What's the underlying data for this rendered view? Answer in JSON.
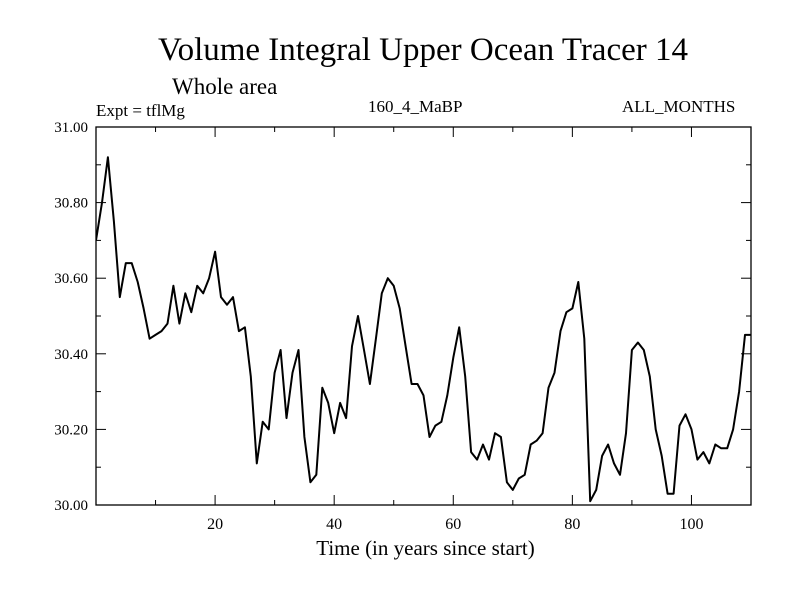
{
  "chart_data": {
    "type": "line",
    "title": "Volume Integral Upper Ocean Tracer 14",
    "subtitle": "Whole area",
    "annotations": {
      "left": "Expt = tflMg",
      "center": "160_4_MaBP",
      "right": "ALL_MONTHS"
    },
    "xlabel": "Time (in years since start)",
    "ylabel": "",
    "xlim": [
      0,
      110
    ],
    "ylim": [
      30.0,
      31.0
    ],
    "x_ticks": [
      20,
      40,
      60,
      80,
      100
    ],
    "x_tick_labels": [
      "20",
      "40",
      "60",
      "80",
      "100"
    ],
    "y_ticks": [
      30.0,
      30.2,
      30.4,
      30.6,
      30.8,
      31.0
    ],
    "y_tick_labels": [
      "30.00",
      "30.20",
      "30.40",
      "30.60",
      "30.80",
      "31.00"
    ],
    "grid": false,
    "series": [
      {
        "name": "Tracer 14",
        "x": [
          0,
          1,
          2,
          3,
          4,
          5,
          6,
          7,
          8,
          9,
          10,
          11,
          12,
          13,
          14,
          15,
          16,
          17,
          18,
          19,
          20,
          21,
          22,
          23,
          24,
          25,
          26,
          27,
          28,
          29,
          30,
          31,
          32,
          33,
          34,
          35,
          36,
          37,
          38,
          39,
          40,
          41,
          42,
          43,
          44,
          45,
          46,
          47,
          48,
          49,
          50,
          51,
          52,
          53,
          54,
          55,
          56,
          57,
          58,
          59,
          60,
          61,
          62,
          63,
          64,
          65,
          66,
          67,
          68,
          69,
          70,
          71,
          72,
          73,
          74,
          75,
          76,
          77,
          78,
          79,
          80,
          81,
          82,
          83,
          84,
          85,
          86,
          87,
          88,
          89,
          90,
          91,
          92,
          93,
          94,
          95,
          96,
          97,
          98,
          99,
          100,
          101,
          102,
          103,
          104,
          105,
          106,
          107,
          108,
          109,
          110
        ],
        "values": [
          30.7,
          30.8,
          30.92,
          30.75,
          30.55,
          30.64,
          30.64,
          30.59,
          30.52,
          30.44,
          30.45,
          30.46,
          30.48,
          30.58,
          30.48,
          30.56,
          30.51,
          30.58,
          30.56,
          30.6,
          30.67,
          30.55,
          30.53,
          30.55,
          30.46,
          30.47,
          30.34,
          30.11,
          30.22,
          30.2,
          30.35,
          30.41,
          30.23,
          30.35,
          30.41,
          30.18,
          30.06,
          30.08,
          30.31,
          30.27,
          30.19,
          30.27,
          30.23,
          30.42,
          30.5,
          30.41,
          30.32,
          30.44,
          30.56,
          30.6,
          30.58,
          30.52,
          30.42,
          30.32,
          30.32,
          30.29,
          30.18,
          30.21,
          30.22,
          30.29,
          30.39,
          30.47,
          30.34,
          30.14,
          30.12,
          30.16,
          30.12,
          30.19,
          30.18,
          30.06,
          30.04,
          30.07,
          30.08,
          30.16,
          30.17,
          30.19,
          30.31,
          30.35,
          30.46,
          30.51,
          30.52,
          30.59,
          30.44,
          30.01,
          30.04,
          30.13,
          30.16,
          30.11,
          30.08,
          30.19,
          30.41,
          30.43,
          30.41,
          30.34,
          30.2,
          30.13,
          30.03,
          30.03,
          30.21,
          30.24,
          30.2,
          30.12,
          30.14,
          30.11,
          30.16,
          30.15,
          30.15,
          30.2,
          30.3,
          30.45,
          30.45
        ]
      }
    ]
  }
}
